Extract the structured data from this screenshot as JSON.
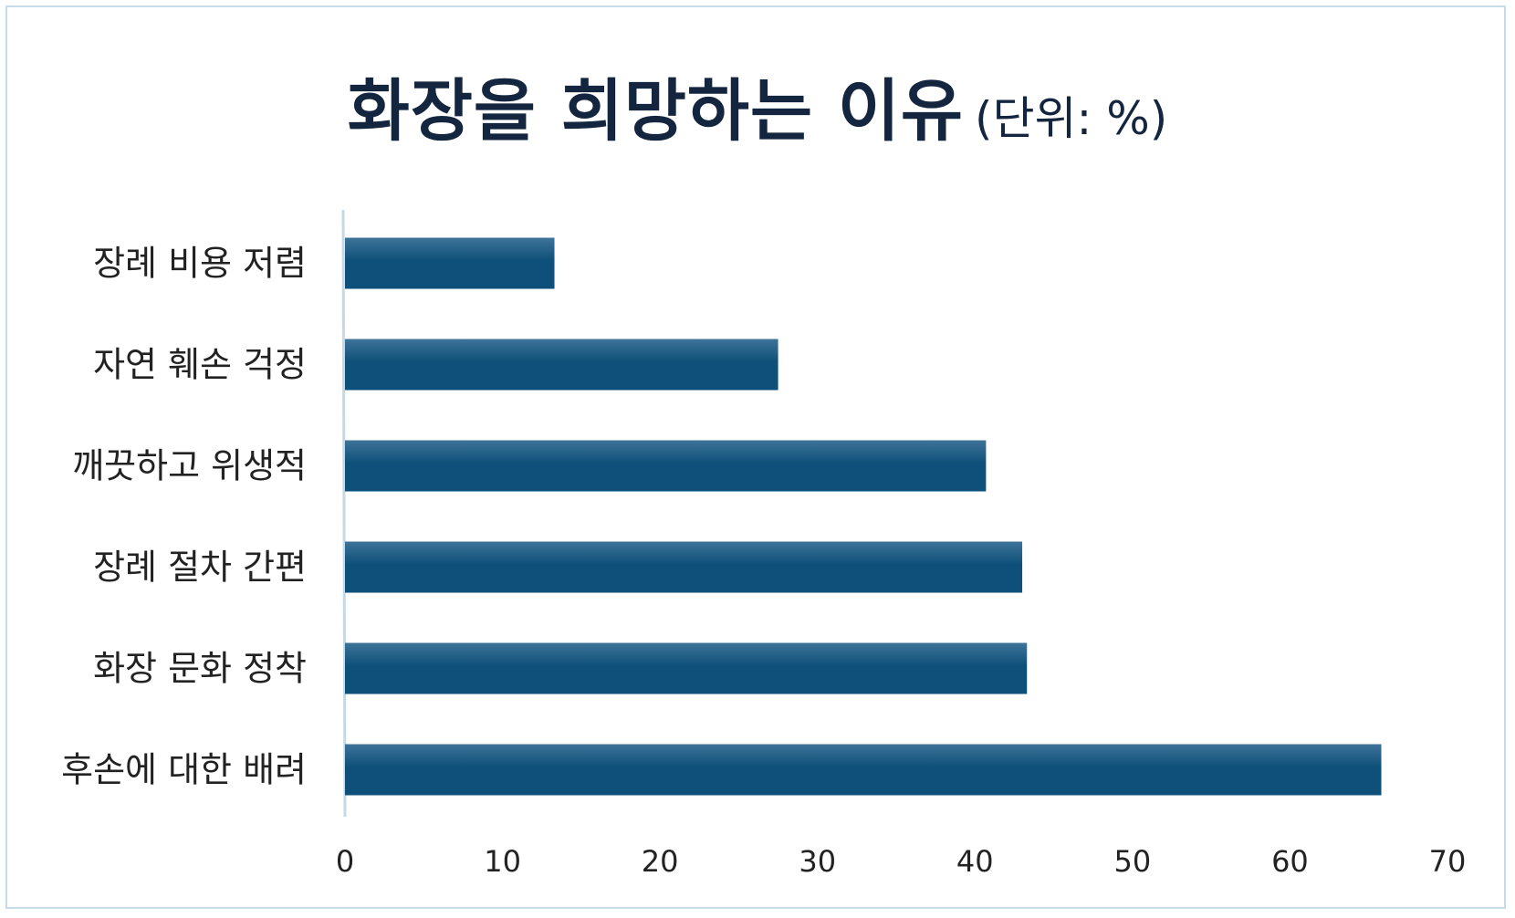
{
  "chart": {
    "title": "화장을 희망하는 이유",
    "unit_label": "(단위: %)"
  },
  "colors": {
    "bar": "#0e5079",
    "bar_highlight": "#3e7399",
    "axis": "#c5d8e6",
    "title": "#14253f"
  },
  "chart_data": {
    "type": "bar",
    "orientation": "horizontal",
    "title": "화장을 희망하는 이유",
    "unit": "%",
    "categories": [
      "장례 비용 저렴",
      "자연 훼손 걱정",
      "깨끗하고 위생적",
      "장례 절차 간편",
      "화장 문화 정착",
      "후손에 대한 배려"
    ],
    "values": [
      13.3,
      27.5,
      40.7,
      43.0,
      43.3,
      65.8
    ],
    "xlim": [
      0,
      70
    ],
    "xticks": [
      "0",
      "10",
      "20",
      "30",
      "40",
      "50",
      "60",
      "70"
    ],
    "grid": false,
    "legend": "none"
  }
}
